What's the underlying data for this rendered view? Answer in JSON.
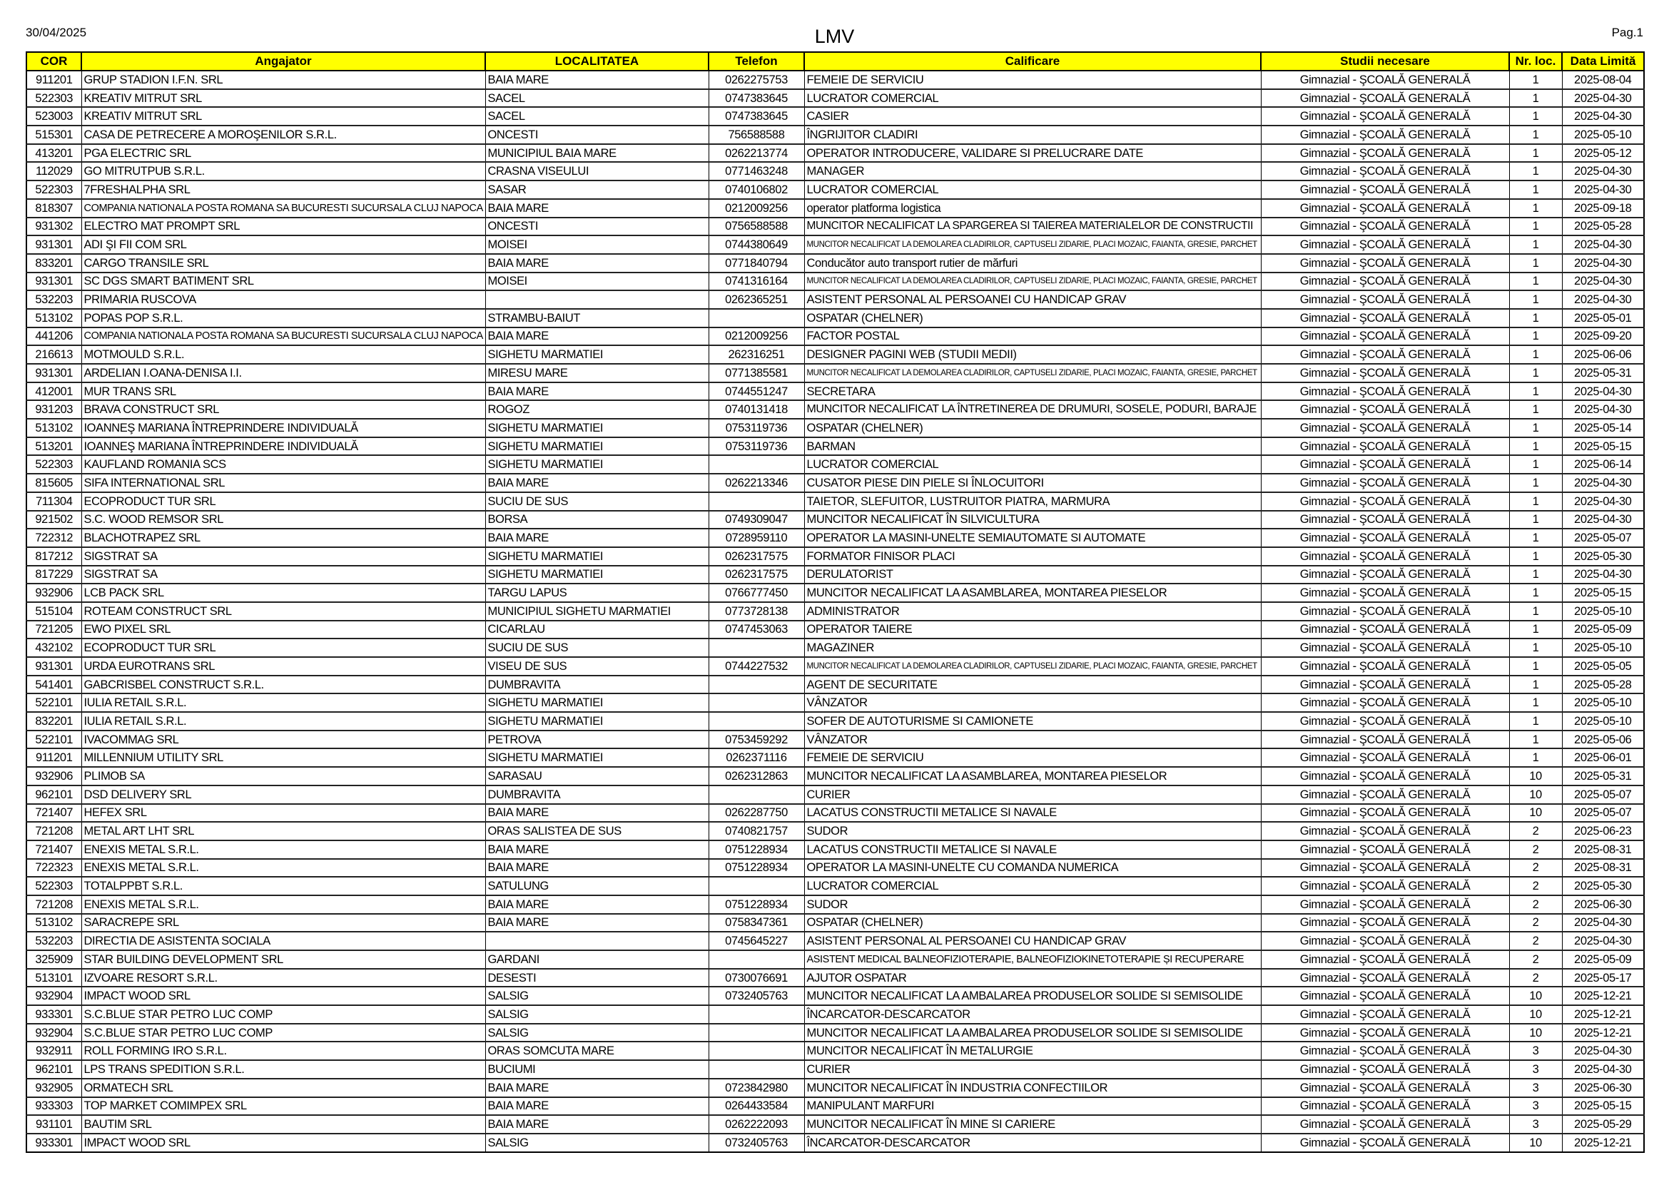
{
  "header": {
    "date": "30/04/2025",
    "title": "LMV",
    "page": "Pag.1"
  },
  "columns": [
    "COR",
    "Angajator",
    "LOCALITATEA",
    "Telefon",
    "Calificare",
    "Studii necesare",
    "Nr. loc.",
    "Data Limită"
  ],
  "header_color": "#ffff00",
  "rows": [
    [
      "911201",
      "GRUP STADION I.F.N. SRL",
      "BAIA MARE",
      "0262275753",
      "FEMEIE DE SERVICIU",
      "Gimnazial - ŞCOALĂ GENERALĂ",
      "1",
      "2025-08-04"
    ],
    [
      "522303",
      "KREATIV MITRUT SRL",
      "SACEL",
      "0747383645",
      "LUCRATOR COMERCIAL",
      "Gimnazial - ŞCOALĂ GENERALĂ",
      "1",
      "2025-04-30"
    ],
    [
      "523003",
      "KREATIV MITRUT SRL",
      "SACEL",
      "0747383645",
      "CASIER",
      "Gimnazial - ŞCOALĂ GENERALĂ",
      "1",
      "2025-04-30"
    ],
    [
      "515301",
      "CASA DE PETRECERE A MOROŞENILOR S.R.L.",
      "ONCESTI",
      "756588588",
      "ÎNGRIJITOR CLADIRI",
      "Gimnazial - ŞCOALĂ GENERALĂ",
      "1",
      "2025-05-10"
    ],
    [
      "413201",
      "PGA ELECTRIC SRL",
      "MUNICIPIUL BAIA MARE",
      "0262213774",
      "OPERATOR INTRODUCERE, VALIDARE SI PRELUCRARE DATE",
      "Gimnazial - ŞCOALĂ GENERALĂ",
      "1",
      "2025-05-12"
    ],
    [
      "112029",
      "GO MITRUTPUB S.R.L.",
      "CRASNA VISEULUI",
      "0771463248",
      "MANAGER",
      "Gimnazial - ŞCOALĂ GENERALĂ",
      "1",
      "2025-04-30"
    ],
    [
      "522303",
      "7FRESHALPHA SRL",
      "SASAR",
      "0740106802",
      "LUCRATOR COMERCIAL",
      "Gimnazial - ŞCOALĂ GENERALĂ",
      "1",
      "2025-04-30"
    ],
    [
      "818307",
      "COMPANIA NATIONALA POSTA ROMANA SA BUCURESTI SUCURSALA CLUJ NAPOCA",
      "BAIA MARE",
      "0212009256",
      "operator platforma logistica",
      "Gimnazial - ŞCOALĂ GENERALĂ",
      "1",
      "2025-09-18"
    ],
    [
      "931302",
      "ELECTRO MAT PROMPT SRL",
      "ONCESTI",
      "0756588588",
      "MUNCITOR NECALIFICAT LA SPARGEREA SI TAIEREA MATERIALELOR DE CONSTRUCTII",
      "Gimnazial - ŞCOALĂ GENERALĂ",
      "1",
      "2025-05-28"
    ],
    [
      "931301",
      "ADI ŞI FII COM SRL",
      "MOISEI",
      "0744380649",
      "MUNCITOR NECALIFICAT LA DEMOLAREA CLADIRILOR, CAPTUSELI ZIDARIE, PLACI MOZAIC, FAIANTA, GRESIE, PARCHET",
      "Gimnazial - ŞCOALĂ GENERALĂ",
      "1",
      "2025-04-30"
    ],
    [
      "833201",
      "CARGO TRANSILE SRL",
      "BAIA MARE",
      "0771840794",
      "Conducător auto transport rutier de mărfuri",
      "Gimnazial - ŞCOALĂ GENERALĂ",
      "1",
      "2025-04-30"
    ],
    [
      "931301",
      "SC DGS SMART BATIMENT SRL",
      "MOISEI",
      "0741316164",
      "MUNCITOR NECALIFICAT LA DEMOLAREA CLADIRILOR, CAPTUSELI ZIDARIE, PLACI MOZAIC, FAIANTA, GRESIE, PARCHET",
      "Gimnazial - ŞCOALĂ GENERALĂ",
      "1",
      "2025-04-30"
    ],
    [
      "532203",
      "PRIMARIA RUSCOVA",
      "",
      "0262365251",
      "ASISTENT PERSONAL AL PERSOANEI CU HANDICAP GRAV",
      "Gimnazial - ŞCOALĂ GENERALĂ",
      "1",
      "2025-04-30"
    ],
    [
      "513102",
      "POPAS POP S.R.L.",
      "STRAMBU-BAIUT",
      "",
      "OSPATAR (CHELNER)",
      "Gimnazial - ŞCOALĂ GENERALĂ",
      "1",
      "2025-05-01"
    ],
    [
      "441206",
      "COMPANIA NATIONALA POSTA ROMANA SA BUCURESTI SUCURSALA CLUJ NAPOCA",
      "BAIA MARE",
      "0212009256",
      "FACTOR POSTAL",
      "Gimnazial - ŞCOALĂ GENERALĂ",
      "1",
      "2025-09-20"
    ],
    [
      "216613",
      "MOTMOULD S.R.L.",
      "SIGHETU MARMATIEI",
      "262316251",
      "DESIGNER PAGINI WEB (STUDII MEDII)",
      "Gimnazial - ŞCOALĂ GENERALĂ",
      "1",
      "2025-06-06"
    ],
    [
      "931301",
      "ARDELIAN I.OANA-DENISA I.I.",
      "MIRESU MARE",
      "0771385581",
      "MUNCITOR NECALIFICAT LA DEMOLAREA CLADIRILOR, CAPTUSELI ZIDARIE, PLACI MOZAIC, FAIANTA, GRESIE, PARCHET",
      "Gimnazial - ŞCOALĂ GENERALĂ",
      "1",
      "2025-05-31"
    ],
    [
      "412001",
      "MUR TRANS SRL",
      "BAIA MARE",
      "0744551247",
      "SECRETARA",
      "Gimnazial - ŞCOALĂ GENERALĂ",
      "1",
      "2025-04-30"
    ],
    [
      "931203",
      "BRAVA CONSTRUCT SRL",
      "ROGOZ",
      "0740131418",
      "MUNCITOR NECALIFICAT LA ÎNTRETINEREA DE DRUMURI, SOSELE, PODURI, BARAJE",
      "Gimnazial - ŞCOALĂ GENERALĂ",
      "1",
      "2025-04-30"
    ],
    [
      "513102",
      "IOANNEŞ MARIANA ÎNTREPRINDERE INDIVIDUALĂ",
      "SIGHETU MARMATIEI",
      "0753119736",
      "OSPATAR (CHELNER)",
      "Gimnazial - ŞCOALĂ GENERALĂ",
      "1",
      "2025-05-14"
    ],
    [
      "513201",
      "IOANNEŞ MARIANA ÎNTREPRINDERE INDIVIDUALĂ",
      "SIGHETU MARMATIEI",
      "0753119736",
      "BARMAN",
      "Gimnazial - ŞCOALĂ GENERALĂ",
      "1",
      "2025-05-15"
    ],
    [
      "522303",
      "KAUFLAND ROMANIA SCS",
      "SIGHETU MARMATIEI",
      "",
      "LUCRATOR COMERCIAL",
      "Gimnazial - ŞCOALĂ GENERALĂ",
      "1",
      "2025-06-14"
    ],
    [
      "815605",
      "SIFA INTERNATIONAL SRL",
      "BAIA MARE",
      "0262213346",
      "CUSATOR PIESE DIN PIELE SI ÎNLOCUITORI",
      "Gimnazial - ŞCOALĂ GENERALĂ",
      "1",
      "2025-04-30"
    ],
    [
      "711304",
      "ECOPRODUCT TUR SRL",
      "SUCIU DE SUS",
      "",
      "TAIETOR, SLEFUITOR, LUSTRUITOR PIATRA, MARMURA",
      "Gimnazial - ŞCOALĂ GENERALĂ",
      "1",
      "2025-04-30"
    ],
    [
      "921502",
      "S.C. WOOD REMSOR SRL",
      "BORSA",
      "0749309047",
      "MUNCITOR NECALIFICAT ÎN SILVICULTURA",
      "Gimnazial - ŞCOALĂ GENERALĂ",
      "1",
      "2025-04-30"
    ],
    [
      "722312",
      "BLACHOTRAPEZ SRL",
      "BAIA MARE",
      "0728959110",
      "OPERATOR LA MASINI-UNELTE SEMIAUTOMATE SI AUTOMATE",
      "Gimnazial - ŞCOALĂ GENERALĂ",
      "1",
      "2025-05-07"
    ],
    [
      "817212",
      "SIGSTRAT SA",
      "SIGHETU MARMATIEI",
      "0262317575",
      "FORMATOR FINISOR PLACI",
      "Gimnazial - ŞCOALĂ GENERALĂ",
      "1",
      "2025-05-30"
    ],
    [
      "817229",
      "SIGSTRAT SA",
      "SIGHETU MARMATIEI",
      "0262317575",
      "DERULATORIST",
      "Gimnazial - ŞCOALĂ GENERALĂ",
      "1",
      "2025-04-30"
    ],
    [
      "932906",
      "LCB PACK SRL",
      "TARGU LAPUS",
      "0766777450",
      "MUNCITOR NECALIFICAT LA ASAMBLAREA, MONTAREA PIESELOR",
      "Gimnazial - ŞCOALĂ GENERALĂ",
      "1",
      "2025-05-15"
    ],
    [
      "515104",
      "ROTEAM CONSTRUCT SRL",
      "MUNICIPIUL SIGHETU MARMATIEI",
      "0773728138",
      "ADMINISTRATOR",
      "Gimnazial - ŞCOALĂ GENERALĂ",
      "1",
      "2025-05-10"
    ],
    [
      "721205",
      "EWO PIXEL SRL",
      "CICARLAU",
      "0747453063",
      "OPERATOR TAIERE",
      "Gimnazial - ŞCOALĂ GENERALĂ",
      "1",
      "2025-05-09"
    ],
    [
      "432102",
      "ECOPRODUCT TUR SRL",
      "SUCIU DE SUS",
      "",
      "MAGAZINER",
      "Gimnazial - ŞCOALĂ GENERALĂ",
      "1",
      "2025-05-10"
    ],
    [
      "931301",
      "URDA EUROTRANS SRL",
      "VISEU DE SUS",
      "0744227532",
      "MUNCITOR NECALIFICAT LA DEMOLAREA CLADIRILOR, CAPTUSELI ZIDARIE, PLACI MOZAIC, FAIANTA, GRESIE, PARCHET",
      "Gimnazial - ŞCOALĂ GENERALĂ",
      "1",
      "2025-05-05"
    ],
    [
      "541401",
      "GABCRISBEL CONSTRUCT S.R.L.",
      "DUMBRAVITA",
      "",
      "AGENT DE SECURITATE",
      "Gimnazial - ŞCOALĂ GENERALĂ",
      "1",
      "2025-05-28"
    ],
    [
      "522101",
      "IULIA RETAIL S.R.L.",
      "SIGHETU MARMATIEI",
      "",
      "VÂNZATOR",
      "Gimnazial - ŞCOALĂ GENERALĂ",
      "1",
      "2025-05-10"
    ],
    [
      "832201",
      "IULIA RETAIL S.R.L.",
      "SIGHETU MARMATIEI",
      "",
      "SOFER DE AUTOTURISME SI CAMIONETE",
      "Gimnazial - ŞCOALĂ GENERALĂ",
      "1",
      "2025-05-10"
    ],
    [
      "522101",
      "IVACOMMAG SRL",
      "PETROVA",
      "0753459292",
      "VÂNZATOR",
      "Gimnazial - ŞCOALĂ GENERALĂ",
      "1",
      "2025-05-06"
    ],
    [
      "911201",
      "MILLENNIUM UTILITY SRL",
      "SIGHETU MARMATIEI",
      "0262371116",
      "FEMEIE DE SERVICIU",
      "Gimnazial - ŞCOALĂ GENERALĂ",
      "1",
      "2025-06-01"
    ],
    [
      "932906",
      "PLIMOB SA",
      "SARASAU",
      "0262312863",
      "MUNCITOR NECALIFICAT LA ASAMBLAREA, MONTAREA PIESELOR",
      "Gimnazial - ŞCOALĂ GENERALĂ",
      "10",
      "2025-05-31"
    ],
    [
      "962101",
      "DSD DELIVERY SRL",
      "DUMBRAVITA",
      "",
      "CURIER",
      "Gimnazial - ŞCOALĂ GENERALĂ",
      "10",
      "2025-05-07"
    ],
    [
      "721407",
      "HEFEX SRL",
      "BAIA MARE",
      "0262287750",
      "LACATUS CONSTRUCTII METALICE SI NAVALE",
      "Gimnazial - ŞCOALĂ GENERALĂ",
      "10",
      "2025-05-07"
    ],
    [
      "721208",
      "METAL ART LHT SRL",
      "ORAS SALISTEA DE SUS",
      "0740821757",
      "SUDOR",
      "Gimnazial - ŞCOALĂ GENERALĂ",
      "2",
      "2025-06-23"
    ],
    [
      "721407",
      "ENEXIS METAL S.R.L.",
      "BAIA MARE",
      "0751228934",
      "LACATUS CONSTRUCTII METALICE SI NAVALE",
      "Gimnazial - ŞCOALĂ GENERALĂ",
      "2",
      "2025-08-31"
    ],
    [
      "722323",
      "ENEXIS METAL S.R.L.",
      "BAIA MARE",
      "0751228934",
      "OPERATOR LA MASINI-UNELTE CU COMANDA NUMERICA",
      "Gimnazial - ŞCOALĂ GENERALĂ",
      "2",
      "2025-08-31"
    ],
    [
      "522303",
      "TOTALPPBT S.R.L.",
      "SATULUNG",
      "",
      "LUCRATOR COMERCIAL",
      "Gimnazial - ŞCOALĂ GENERALĂ",
      "2",
      "2025-05-30"
    ],
    [
      "721208",
      "ENEXIS METAL S.R.L.",
      "BAIA MARE",
      "0751228934",
      "SUDOR",
      "Gimnazial - ŞCOALĂ GENERALĂ",
      "2",
      "2025-06-30"
    ],
    [
      "513102",
      "SARACREPE SRL",
      "BAIA MARE",
      "0758347361",
      "OSPATAR (CHELNER)",
      "Gimnazial - ŞCOALĂ GENERALĂ",
      "2",
      "2025-04-30"
    ],
    [
      "532203",
      "DIRECTIA DE ASISTENTA SOCIALA",
      "",
      "0745645227",
      "ASISTENT PERSONAL AL PERSOANEI CU HANDICAP GRAV",
      "Gimnazial - ŞCOALĂ GENERALĂ",
      "2",
      "2025-04-30"
    ],
    [
      "325909",
      "STAR BUILDING DEVELOPMENT SRL",
      "GARDANI",
      "",
      "ASISTENT MEDICAL BALNEOFIZIOTERAPIE, BALNEOFIZIOKINETOTERAPIE ȘI RECUPERARE",
      "Gimnazial - ŞCOALĂ GENERALĂ",
      "2",
      "2025-05-09"
    ],
    [
      "513101",
      "IZVOARE RESORT S.R.L.",
      "DESESTI",
      "0730076691",
      "AJUTOR OSPATAR",
      "Gimnazial - ŞCOALĂ GENERALĂ",
      "2",
      "2025-05-17"
    ],
    [
      "932904",
      "IMPACT WOOD SRL",
      "SALSIG",
      "0732405763",
      "MUNCITOR NECALIFICAT LA AMBALAREA PRODUSELOR SOLIDE SI SEMISOLIDE",
      "Gimnazial - ŞCOALĂ GENERALĂ",
      "10",
      "2025-12-21"
    ],
    [
      "933301",
      "S.C.BLUE STAR PETRO LUC COMP",
      "SALSIG",
      "",
      "ÎNCARCATOR-DESCARCATOR",
      "Gimnazial - ŞCOALĂ GENERALĂ",
      "10",
      "2025-12-21"
    ],
    [
      "932904",
      "S.C.BLUE STAR PETRO LUC COMP",
      "SALSIG",
      "",
      "MUNCITOR NECALIFICAT LA AMBALAREA PRODUSELOR SOLIDE SI SEMISOLIDE",
      "Gimnazial - ŞCOALĂ GENERALĂ",
      "10",
      "2025-12-21"
    ],
    [
      "932911",
      "ROLL FORMING IRO S.R.L.",
      "ORAS SOMCUTA MARE",
      "",
      "MUNCITOR NECALIFICAT ÎN METALURGIE",
      "Gimnazial - ŞCOALĂ GENERALĂ",
      "3",
      "2025-04-30"
    ],
    [
      "962101",
      "LPS TRANS SPEDITION S.R.L.",
      "BUCIUMI",
      "",
      "CURIER",
      "Gimnazial - ŞCOALĂ GENERALĂ",
      "3",
      "2025-04-30"
    ],
    [
      "932905",
      "ORMATECH SRL",
      "BAIA MARE",
      "0723842980",
      "MUNCITOR NECALIFICAT ÎN INDUSTRIA CONFECTIILOR",
      "Gimnazial - ŞCOALĂ GENERALĂ",
      "3",
      "2025-06-30"
    ],
    [
      "933303",
      "TOP MARKET COMIMPEX SRL",
      "BAIA MARE",
      "0264433584",
      "MANIPULANT MARFURI",
      "Gimnazial - ŞCOALĂ GENERALĂ",
      "3",
      "2025-05-15"
    ],
    [
      "931101",
      "BAUTIM SRL",
      "BAIA MARE",
      "0262222093",
      "MUNCITOR NECALIFICAT ÎN MINE SI CARIERE",
      "Gimnazial - ŞCOALĂ GENERALĂ",
      "3",
      "2025-05-29"
    ],
    [
      "933301",
      "IMPACT WOOD SRL",
      "SALSIG",
      "0732405763",
      "ÎNCARCATOR-DESCARCATOR",
      "Gimnazial - ŞCOALĂ GENERALĂ",
      "10",
      "2025-12-21"
    ]
  ]
}
